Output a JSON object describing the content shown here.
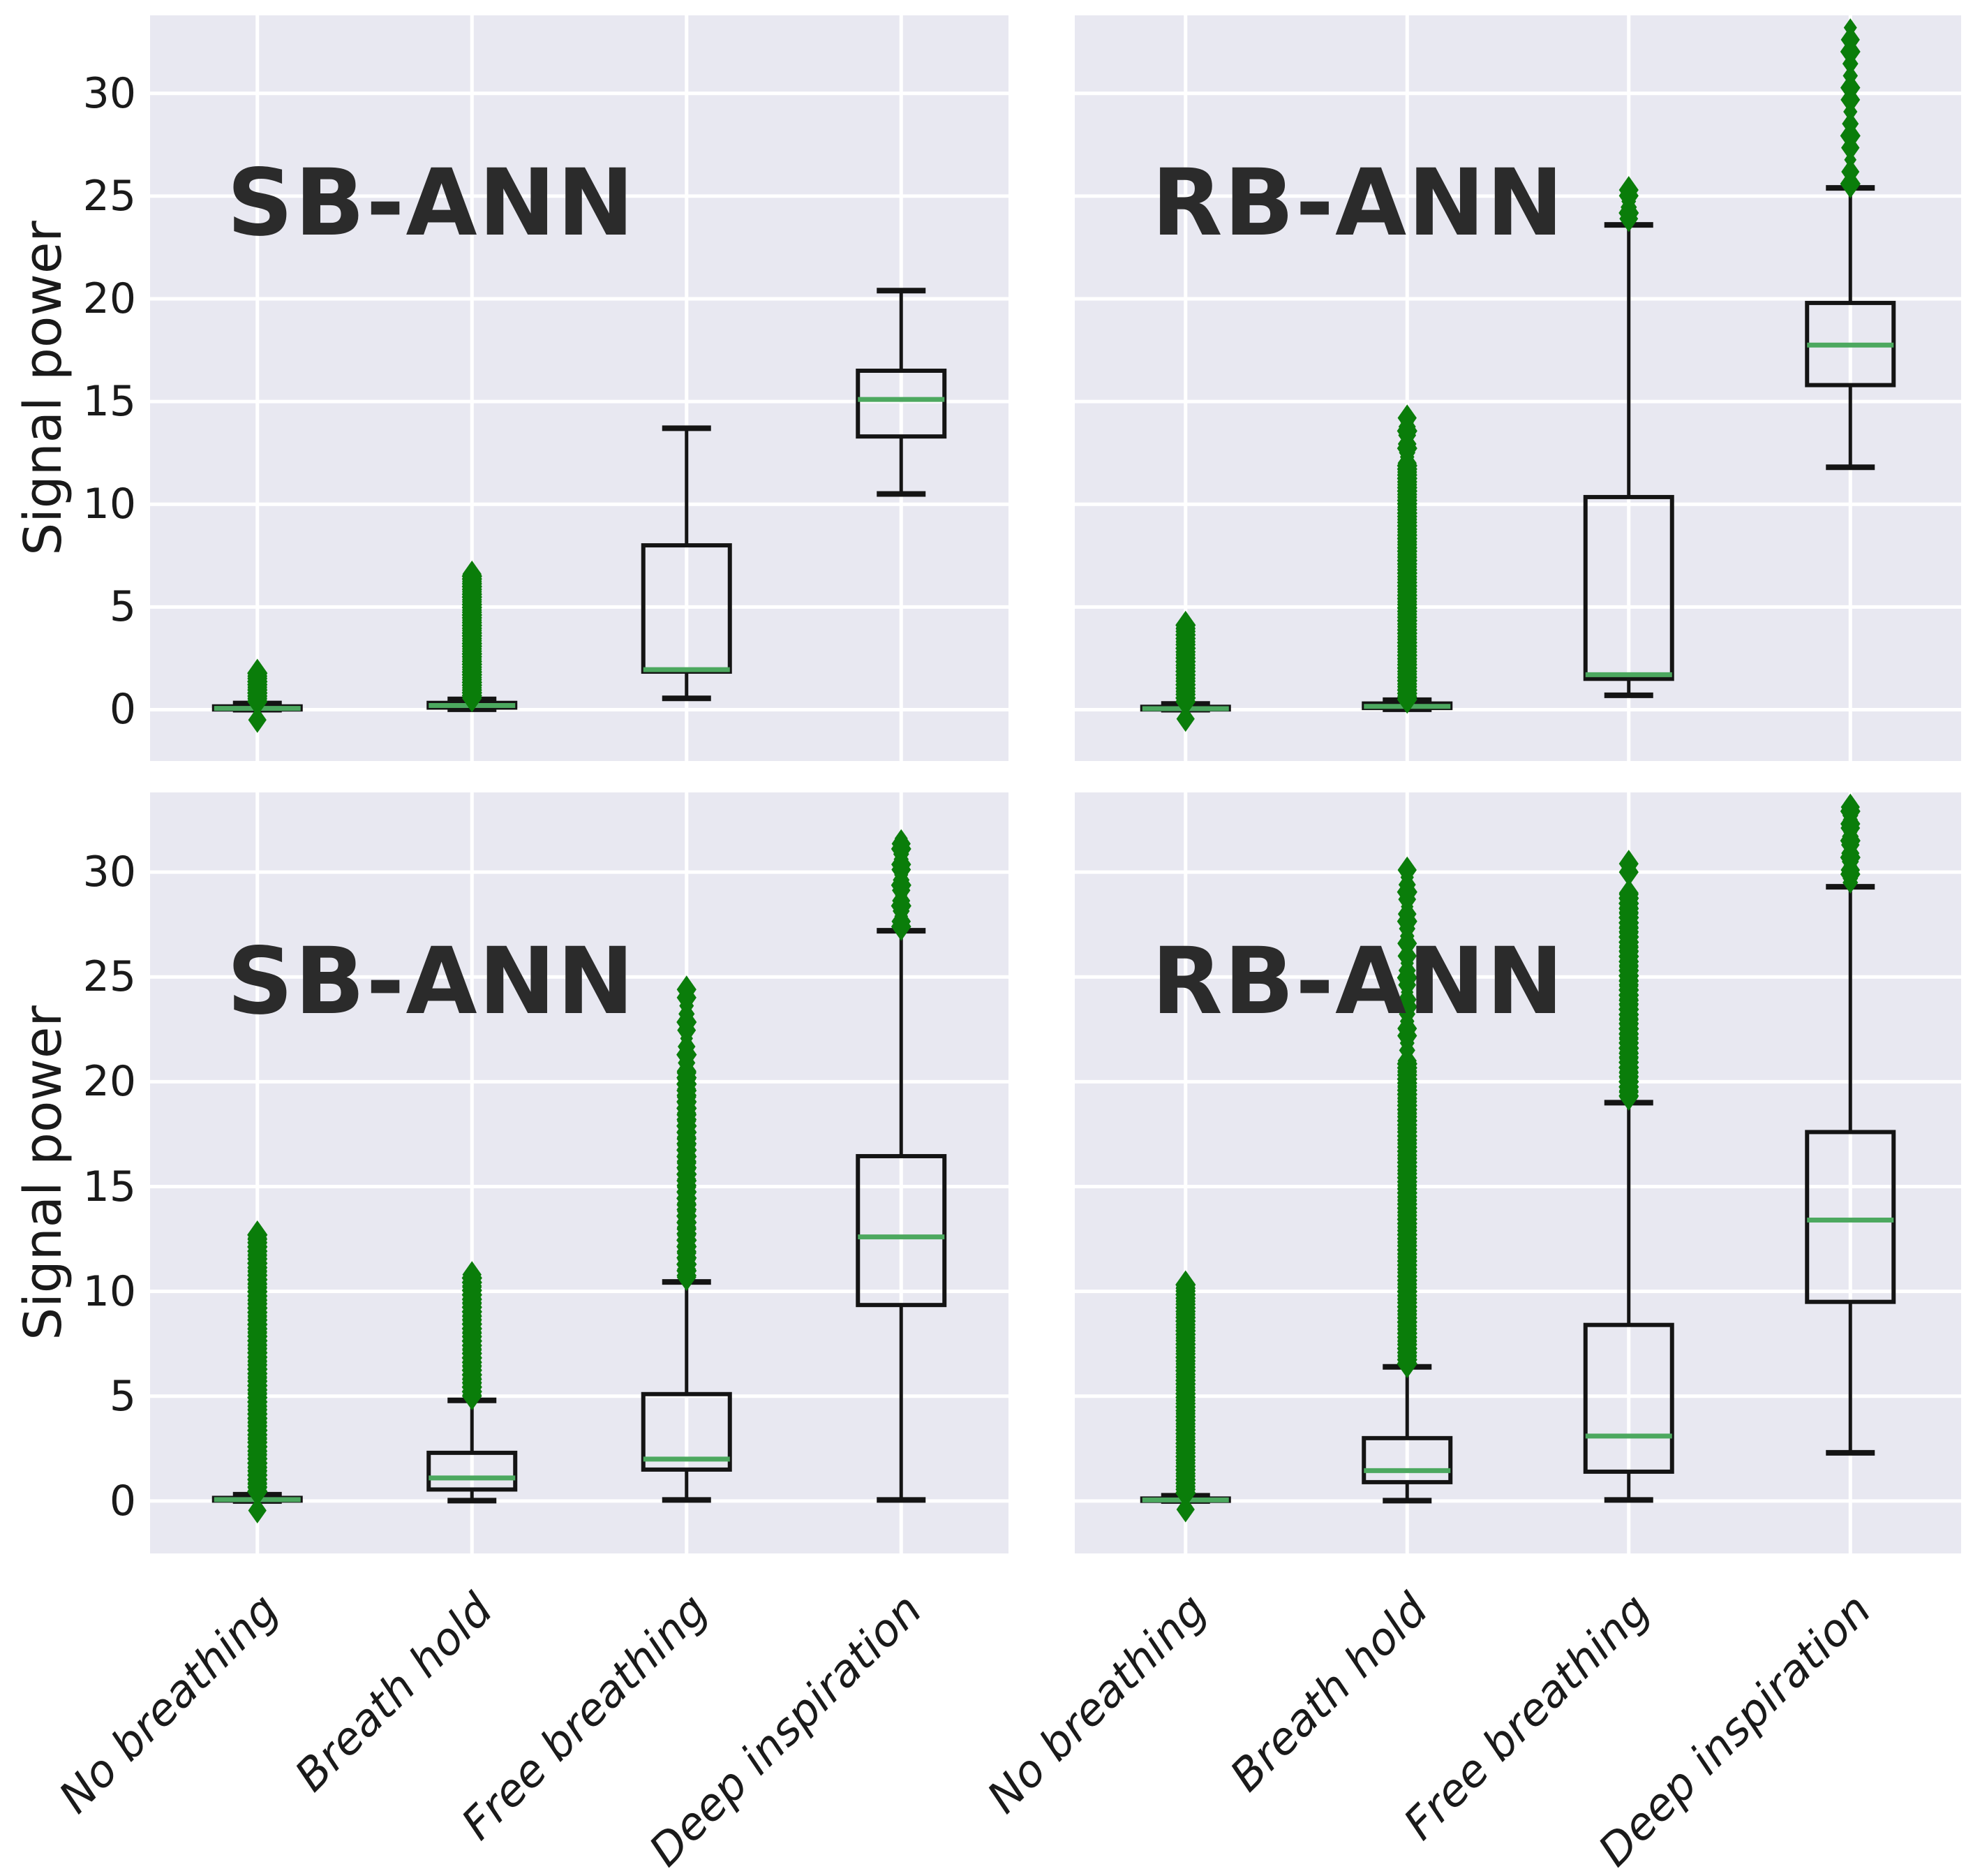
{
  "figure": {
    "background": "#ffffff",
    "panel_background": "#e8e8f1",
    "gridline_color": "#ffffff",
    "box_edge_color": "#141414",
    "median_color": "#4ca85f",
    "outlier_color": "#0a7d0a",
    "text_color": "#1a1a1a",
    "title_color": "#2b2b2b"
  },
  "ylabel": "Signal power",
  "chart_data": {
    "type": "box",
    "grid": true,
    "legend": "none",
    "categories": [
      "No breathing",
      "Breath hold",
      "Free breathing",
      "Deep inspiration"
    ],
    "ylabel": "Signal power",
    "yticks": [
      0,
      5,
      10,
      15,
      20,
      25,
      30
    ],
    "ylim": [
      -2.5,
      33.8
    ],
    "outlier_marker": "thin-diamond",
    "panels": [
      {
        "id": "top-left",
        "title": "SB-ANN",
        "row": 0,
        "col": 0,
        "boxes": [
          {
            "category": "No breathing",
            "whislo": 0.0,
            "q1": 0.01,
            "med": 0.06,
            "q3": 0.16,
            "whishi": 0.3,
            "outlier_ranges": [
              {
                "min": 0.4,
                "max": 1.85,
                "count": 40
              },
              {
                "min": -0.5,
                "max": -0.35,
                "count": 2
              }
            ]
          },
          {
            "category": "Breath hold",
            "whislo": 0.02,
            "q1": 0.1,
            "med": 0.2,
            "q3": 0.33,
            "whishi": 0.5,
            "outlier_ranges": [
              {
                "min": 0.55,
                "max": 6.6,
                "count": 180
              }
            ]
          },
          {
            "category": "Free breathing",
            "whislo": 0.55,
            "q1": 1.85,
            "med": 1.95,
            "q3": 8.0,
            "whishi": 13.7,
            "outlier_ranges": []
          },
          {
            "category": "Deep inspiration",
            "whislo": 10.5,
            "q1": 13.3,
            "med": 15.1,
            "q3": 16.5,
            "whishi": 20.4,
            "outlier_ranges": []
          }
        ]
      },
      {
        "id": "top-right",
        "title": "RB-ANN",
        "row": 0,
        "col": 1,
        "boxes": [
          {
            "category": "No breathing",
            "whislo": 0.0,
            "q1": 0.01,
            "med": 0.05,
            "q3": 0.14,
            "whishi": 0.28,
            "outlier_ranges": [
              {
                "min": 0.35,
                "max": 4.2,
                "count": 90
              },
              {
                "min": -0.45,
                "max": -0.3,
                "count": 2
              }
            ]
          },
          {
            "category": "Breath hold",
            "whislo": 0.02,
            "q1": 0.08,
            "med": 0.16,
            "q3": 0.3,
            "whishi": 0.46,
            "outlier_ranges": [
              {
                "min": 0.5,
                "max": 12.0,
                "count": 280
              },
              {
                "min": 12.3,
                "max": 14.2,
                "count": 10
              }
            ]
          },
          {
            "category": "Free breathing",
            "whislo": 0.7,
            "q1": 1.5,
            "med": 1.7,
            "q3": 10.35,
            "whishi": 23.6,
            "outlier_ranges": [
              {
                "min": 23.9,
                "max": 25.3,
                "count": 6
              }
            ]
          },
          {
            "category": "Deep inspiration",
            "whislo": 11.8,
            "q1": 15.8,
            "med": 17.75,
            "q3": 19.8,
            "whishi": 25.4,
            "outlier_ranges": [
              {
                "min": 25.6,
                "max": 33.2,
                "count": 14
              }
            ]
          }
        ]
      },
      {
        "id": "bottom-left",
        "title": "SB-ANN",
        "row": 1,
        "col": 0,
        "boxes": [
          {
            "category": "No breathing",
            "whislo": 0.0,
            "q1": 0.02,
            "med": 0.07,
            "q3": 0.15,
            "whishi": 0.3,
            "outlier_ranges": [
              {
                "min": 0.35,
                "max": 12.8,
                "count": 240
              },
              {
                "min": -0.45,
                "max": -0.3,
                "count": 2
              }
            ]
          },
          {
            "category": "Breath hold",
            "whislo": 0.02,
            "q1": 0.55,
            "med": 1.1,
            "q3": 2.3,
            "whishi": 4.8,
            "outlier_ranges": [
              {
                "min": 4.95,
                "max": 10.8,
                "count": 110
              }
            ]
          },
          {
            "category": "Free breathing",
            "whislo": 0.05,
            "q1": 1.5,
            "med": 2.0,
            "q3": 5.1,
            "whishi": 10.45,
            "outlier_ranges": [
              {
                "min": 10.6,
                "max": 20.5,
                "count": 130
              },
              {
                "min": 20.9,
                "max": 24.4,
                "count": 10
              }
            ]
          },
          {
            "category": "Deep inspiration",
            "whislo": 0.05,
            "q1": 9.35,
            "med": 12.6,
            "q3": 16.45,
            "whishi": 27.2,
            "outlier_ranges": [
              {
                "min": 27.4,
                "max": 31.6,
                "count": 18
              }
            ]
          }
        ]
      },
      {
        "id": "bottom-right",
        "title": "RB-ANN",
        "row": 1,
        "col": 1,
        "boxes": [
          {
            "category": "No breathing",
            "whislo": 0.0,
            "q1": 0.01,
            "med": 0.05,
            "q3": 0.12,
            "whishi": 0.25,
            "outlier_ranges": [
              {
                "min": 0.3,
                "max": 10.4,
                "count": 240
              },
              {
                "min": -0.4,
                "max": -0.28,
                "count": 2
              }
            ]
          },
          {
            "category": "Breath hold",
            "whislo": 0.02,
            "q1": 0.9,
            "med": 1.45,
            "q3": 3.0,
            "whishi": 6.4,
            "outlier_ranges": [
              {
                "min": 6.5,
                "max": 21.0,
                "count": 300
              },
              {
                "min": 21.5,
                "max": 26.0,
                "count": 14
              },
              {
                "min": 26.6,
                "max": 30.1,
                "count": 11
              }
            ]
          },
          {
            "category": "Free breathing",
            "whislo": 0.05,
            "q1": 1.4,
            "med": 3.1,
            "q3": 8.4,
            "whishi": 19.0,
            "outlier_ranges": [
              {
                "min": 19.2,
                "max": 29.0,
                "count": 160
              },
              {
                "min": 30.0,
                "max": 30.4,
                "count": 2
              }
            ]
          },
          {
            "category": "Deep inspiration",
            "whislo": 2.3,
            "q1": 9.5,
            "med": 13.4,
            "q3": 17.6,
            "whishi": 29.3,
            "outlier_ranges": [
              {
                "min": 29.5,
                "max": 33.3,
                "count": 20
              }
            ]
          }
        ]
      }
    ]
  }
}
